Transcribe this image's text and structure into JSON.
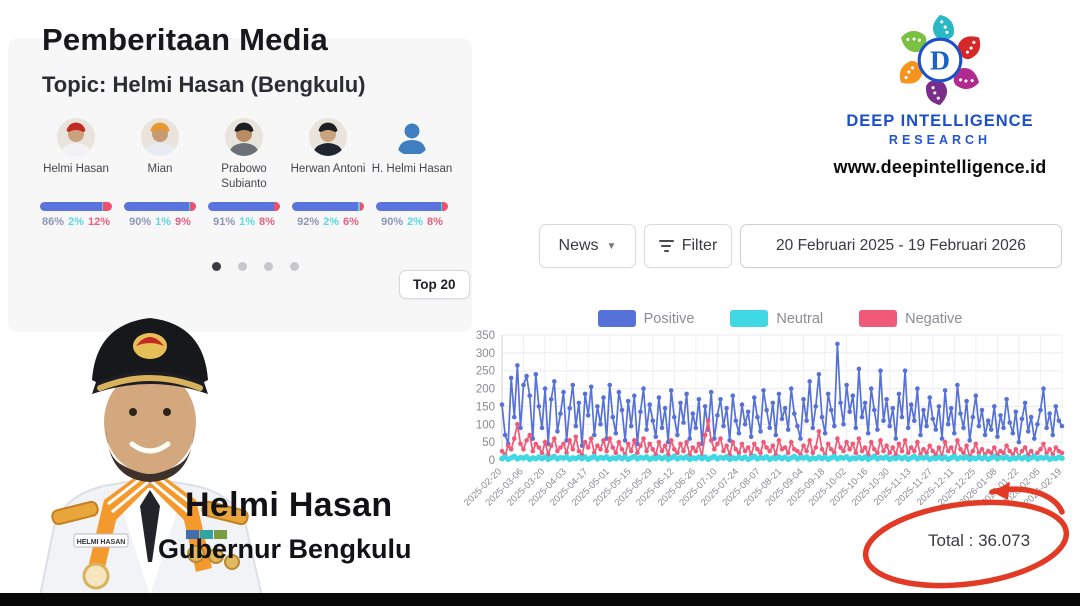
{
  "header": {
    "title": "Pemberitaan Media",
    "topic": "Topic: Helmi Hasan (Bengkulu)"
  },
  "entities": [
    {
      "name": "Helmi Hasan",
      "avatar_kind": "photo",
      "positive": 86,
      "neutral": 2,
      "negative": 12
    },
    {
      "name": "Mian",
      "avatar_kind": "photo",
      "positive": 90,
      "neutral": 1,
      "negative": 9
    },
    {
      "name": "Prabowo Subianto",
      "avatar_kind": "photo",
      "positive": 91,
      "neutral": 1,
      "negative": 8
    },
    {
      "name": "Herwan Antoni",
      "avatar_kind": "photo",
      "positive": 92,
      "neutral": 2,
      "negative": 6
    },
    {
      "name": "H. Helmi Hasan",
      "avatar_kind": "icon",
      "positive": 90,
      "neutral": 2,
      "negative": 8
    }
  ],
  "pagination": {
    "dots": 4,
    "active_index": 0
  },
  "top20_label": "Top 20",
  "brand": {
    "line1": "DEEP INTELLIGENCE",
    "line2": "RESEARCH",
    "website": "www.deepintelligence.id"
  },
  "controls": {
    "news_label": "News",
    "filter_label": "Filter",
    "date_range": "20 Februari 2025 - 19 Februari 2026"
  },
  "portrait": {
    "name": "Helmi Hasan",
    "title": "Gubernur Bengkulu",
    "name_tag": "HELMI HASAN"
  },
  "colors": {
    "positive": "#5671d8",
    "neutral": "#3fd8e4",
    "negative": "#f05a78",
    "bar_blue": "#5b74dd",
    "bar_pink": "#ee4f6e",
    "bar_cyan": "#4fd6e3",
    "annotation_red": "#e23a24",
    "brand_blue": "#1d50c8"
  },
  "chart_data": {
    "type": "line",
    "title": "",
    "xlabel": "",
    "ylabel": "",
    "ylim": [
      0,
      350
    ],
    "y_ticks": [
      0,
      50,
      100,
      150,
      200,
      250,
      300,
      350
    ],
    "grid": true,
    "legend_position": "top",
    "x_tick_labels": [
      "2025-02-20",
      "2025-03-06",
      "2025-03-20",
      "2025-04-03",
      "2025-04-17",
      "2025-05-01",
      "2025-05-15",
      "2025-05-29",
      "2025-06-12",
      "2025-06-26",
      "2025-07-10",
      "2025-07-24",
      "2025-08-07",
      "2025-08-21",
      "2025-09-04",
      "2025-09-18",
      "2025-10-02",
      "2025-10-16",
      "2025-10-30",
      "2025-11-13",
      "2025-11-27",
      "2025-12-11",
      "2025-12-25",
      "2026-01-08",
      "2026-01-22",
      "2026-02-05",
      "2026-02-19"
    ],
    "annotation": {
      "total_label": "Total : 36.073"
    },
    "series": [
      {
        "name": "Positive",
        "color": "#5671d8",
        "values": [
          155,
          70,
          45,
          230,
          120,
          265,
          90,
          210,
          235,
          180,
          60,
          240,
          150,
          90,
          200,
          45,
          170,
          220,
          80,
          130,
          190,
          55,
          145,
          210,
          95,
          160,
          40,
          185,
          125,
          205,
          70,
          150,
          100,
          175,
          60,
          210,
          120,
          75,
          190,
          140,
          55,
          165,
          95,
          180,
          45,
          135,
          200,
          85,
          155,
          110,
          65,
          175,
          90,
          145,
          50,
          195,
          120,
          70,
          160,
          105,
          185,
          60,
          130,
          90,
          170,
          45,
          150,
          85,
          190,
          60,
          125,
          170,
          95,
          145,
          55,
          180,
          110,
          75,
          155,
          100,
          135,
          65,
          175,
          120,
          80,
          195,
          140,
          90,
          160,
          70,
          185,
          115,
          145,
          85,
          200,
          130,
          95,
          60,
          170,
          110,
          220,
          90,
          150,
          240,
          120,
          75,
          185,
          140,
          95,
          325,
          160,
          100,
          210,
          135,
          180,
          90,
          255,
          120,
          160,
          75,
          200,
          140,
          85,
          250,
          110,
          170,
          95,
          145,
          60,
          185,
          120,
          250,
          90,
          155,
          110,
          200,
          70,
          140,
          95,
          175,
          115,
          85,
          150,
          60,
          195,
          100,
          145,
          75,
          210,
          130,
          90,
          165,
          55,
          120,
          180,
          95,
          140,
          70,
          110,
          85,
          150,
          65,
          125,
          90,
          170,
          105,
          75,
          135,
          50,
          115,
          160,
          80,
          120,
          60,
          100,
          140,
          200,
          90,
          130,
          70,
          150,
          110,
          95
        ]
      },
      {
        "name": "Neutral",
        "color": "#3fd8e4",
        "values": [
          4,
          8,
          2,
          6,
          10,
          3,
          7,
          5,
          9,
          2,
          6,
          4,
          8,
          4,
          8,
          2,
          6,
          10,
          3,
          7,
          5,
          9,
          2,
          6,
          4,
          8,
          4,
          8,
          2,
          6,
          10,
          3,
          7,
          5,
          9,
          2,
          6,
          4,
          8,
          4,
          8,
          2,
          6,
          10,
          3,
          7,
          5,
          9,
          2,
          6,
          4,
          8,
          4,
          8,
          2,
          6,
          10,
          3,
          7,
          5,
          9,
          2,
          6,
          4,
          8,
          4,
          8,
          2,
          6,
          10,
          3,
          7,
          5,
          9,
          2,
          6,
          4,
          8,
          4,
          8,
          2,
          6,
          10,
          3,
          7,
          5,
          9,
          2,
          6,
          4,
          8,
          4,
          8,
          2,
          6,
          10,
          3,
          7,
          5,
          9,
          2,
          6,
          4,
          8,
          4,
          8,
          2,
          6,
          10,
          3,
          7,
          5,
          9,
          2,
          6,
          4,
          8,
          4,
          8,
          2,
          6,
          10,
          3,
          7,
          5,
          9,
          2,
          6,
          4,
          8,
          4,
          8,
          2,
          6,
          10,
          3,
          7,
          5,
          9,
          2,
          6,
          4,
          8,
          4,
          8,
          2,
          6,
          10,
          3,
          7,
          5,
          9,
          2,
          6,
          4,
          8,
          4,
          8,
          2,
          6,
          10,
          3,
          7,
          5,
          9,
          2,
          6,
          4,
          8,
          4,
          8,
          2,
          6,
          10,
          3,
          7,
          5,
          9,
          2,
          6,
          4,
          8,
          5
        ]
      },
      {
        "name": "Negative",
        "color": "#f05a78",
        "values": [
          25,
          15,
          40,
          30,
          60,
          100,
          45,
          30,
          55,
          70,
          25,
          45,
          35,
          20,
          50,
          15,
          40,
          60,
          25,
          35,
          45,
          20,
          55,
          30,
          65,
          25,
          15,
          50,
          35,
          60,
          20,
          40,
          30,
          55,
          25,
          60,
          35,
          20,
          50,
          30,
          15,
          45,
          25,
          55,
          20,
          40,
          60,
          25,
          45,
          30,
          15,
          50,
          25,
          40,
          15,
          55,
          30,
          20,
          45,
          25,
          50,
          15,
          35,
          25,
          45,
          10,
          70,
          110,
          55,
          30,
          45,
          60,
          25,
          40,
          15,
          50,
          30,
          20,
          45,
          25,
          35,
          15,
          45,
          30,
          20,
          50,
          35,
          25,
          40,
          15,
          55,
          30,
          35,
          20,
          50,
          30,
          25,
          15,
          40,
          25,
          55,
          20,
          35,
          80,
          30,
          15,
          45,
          30,
          20,
          60,
          35,
          25,
          50,
          30,
          45,
          20,
          60,
          25,
          35,
          15,
          50,
          30,
          20,
          55,
          25,
          40,
          20,
          35,
          15,
          45,
          25,
          55,
          20,
          35,
          25,
          50,
          15,
          30,
          20,
          40,
          25,
          15,
          35,
          10,
          50,
          25,
          35,
          15,
          55,
          30,
          20,
          40,
          10,
          25,
          45,
          20,
          30,
          15,
          25,
          20,
          35,
          15,
          25,
          20,
          40,
          25,
          15,
          30,
          10,
          25,
          35,
          15,
          25,
          10,
          20,
          30,
          45,
          20,
          30,
          15,
          35,
          25,
          20
        ]
      }
    ]
  }
}
